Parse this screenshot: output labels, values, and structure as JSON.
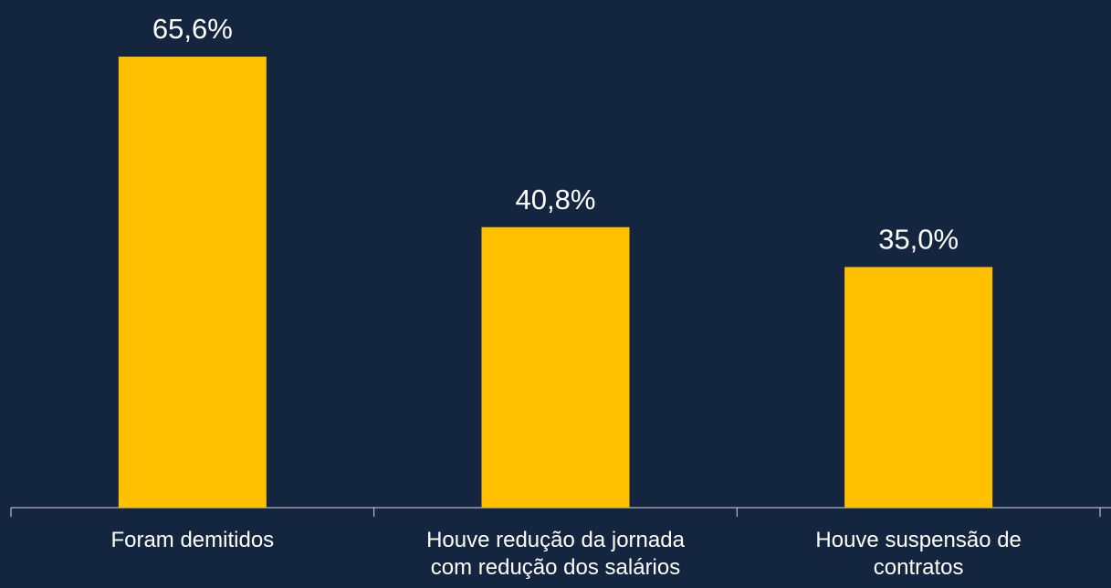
{
  "chart_data": {
    "type": "bar",
    "categories": [
      "Foram demitidos",
      "Houve redução da jornada com redução dos salários",
      "Houve suspensão de contratos"
    ],
    "values": [
      65.6,
      40.8,
      35.0
    ],
    "value_labels": [
      "65,6%",
      "40,8%",
      "35,0%"
    ],
    "color": "#ffc000"
  }
}
